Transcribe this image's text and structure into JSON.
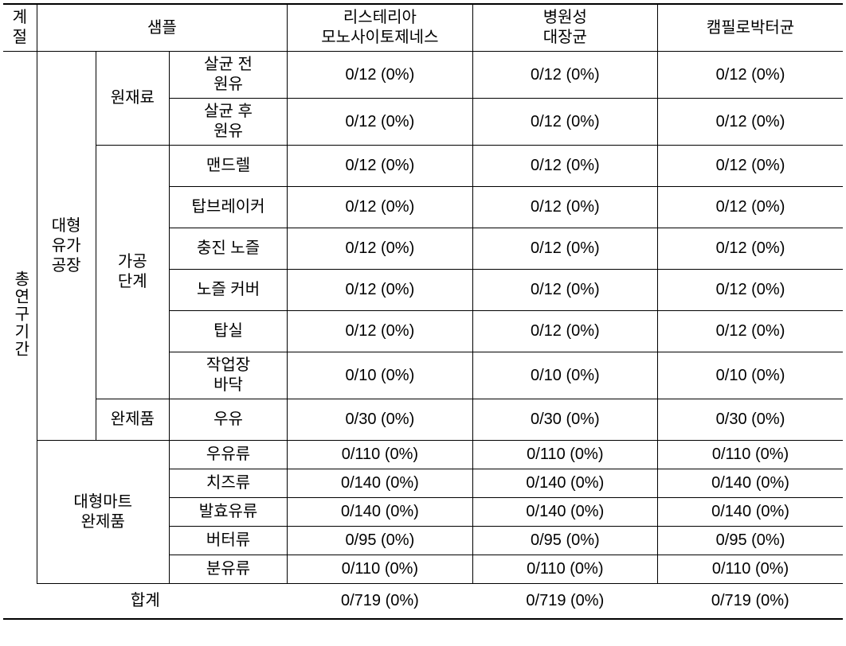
{
  "headers": {
    "season": "계\n절",
    "sample": "샘플",
    "listeria": "리스테리아\n모노사이토제네스",
    "ecoli": "병원성\n대장균",
    "campylo": "캠필로박터균"
  },
  "labels": {
    "period": "총연구기간",
    "factory": "대형\n유가\n공장",
    "raw": "원재료",
    "processing": "가공\n단계",
    "finished": "완제품",
    "mart": "대형마트\n완제품",
    "total": "합계"
  },
  "samples": {
    "raw_pre": "살균 전\n원유",
    "raw_post": "살균 후\n원유",
    "mandrel": "맨드렐",
    "topbreaker": "탑브레이커",
    "nozzle": "충진 노즐",
    "nozzle_cover": "노즐 커버",
    "topseal": "탑실",
    "floor": "작업장\n바닥",
    "milk": "우유",
    "m_milk": "우유류",
    "m_cheese": "치즈류",
    "m_ferment": "발효유류",
    "m_butter": "버터류",
    "m_powder": "분유류"
  },
  "data": {
    "raw_pre": {
      "l": "0/12 (0%)",
      "e": "0/12 (0%)",
      "c": "0/12 (0%)"
    },
    "raw_post": {
      "l": "0/12 (0%)",
      "e": "0/12 (0%)",
      "c": "0/12 (0%)"
    },
    "mandrel": {
      "l": "0/12 (0%)",
      "e": "0/12 (0%)",
      "c": "0/12 (0%)"
    },
    "topbreaker": {
      "l": "0/12 (0%)",
      "e": "0/12 (0%)",
      "c": "0/12 (0%)"
    },
    "nozzle": {
      "l": "0/12 (0%)",
      "e": "0/12 (0%)",
      "c": "0/12 (0%)"
    },
    "nozzle_cover": {
      "l": "0/12 (0%)",
      "e": "0/12 (0%)",
      "c": "0/12 (0%)"
    },
    "topseal": {
      "l": "0/12 (0%)",
      "e": "0/12 (0%)",
      "c": "0/12 (0%)"
    },
    "floor": {
      "l": "0/10 (0%)",
      "e": "0/10 (0%)",
      "c": "0/10 (0%)"
    },
    "milk": {
      "l": "0/30 (0%)",
      "e": "0/30 (0%)",
      "c": "0/30 (0%)"
    },
    "m_milk": {
      "l": "0/110 (0%)",
      "e": "0/110 (0%)",
      "c": "0/110 (0%)"
    },
    "m_cheese": {
      "l": "0/140 (0%)",
      "e": "0/140 (0%)",
      "c": "0/140 (0%)"
    },
    "m_ferment": {
      "l": "0/140 (0%)",
      "e": "0/140 (0%)",
      "c": "0/140 (0%)"
    },
    "m_butter": {
      "l": "0/95 (0%)",
      "e": "0/95 (0%)",
      "c": "0/95 (0%)"
    },
    "m_powder": {
      "l": "0/110 (0%)",
      "e": "0/110 (0%)",
      "c": "0/110 (0%)"
    },
    "total": {
      "l": "0/719 (0%)",
      "e": "0/719 (0%)",
      "c": "0/719 (0%)"
    }
  },
  "style": {
    "font_family": "Malgun Gothic",
    "font_size_pt": 15,
    "border_color": "#000000",
    "background_color": "#ffffff",
    "text_color": "#000000"
  }
}
